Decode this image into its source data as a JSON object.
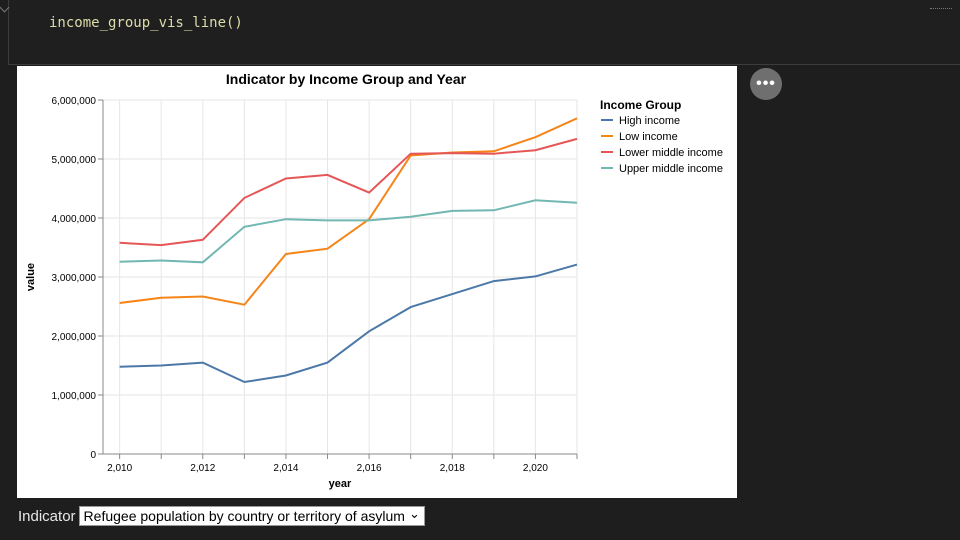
{
  "notebook": {
    "code": "income_group_vis_line()"
  },
  "more_button": {
    "icon": "more-horizontal-icon",
    "label": "•••"
  },
  "indicator": {
    "label": "Indicator",
    "selected": "Refugee population by country or territory of asylum",
    "chevron": "⌄"
  },
  "chart_data": {
    "type": "line",
    "title": "Indicator by Income Group and Year",
    "xlabel": "year",
    "ylabel": "value",
    "xlim": [
      2009.6,
      2021.0
    ],
    "ylim": [
      0,
      6000000
    ],
    "x_ticks": [
      2010,
      2012,
      2014,
      2016,
      2018,
      2020
    ],
    "x_tick_labels": [
      "2,010",
      "2,012",
      "2,014",
      "2,016",
      "2,018",
      "2,020"
    ],
    "y_ticks": [
      0,
      1000000,
      2000000,
      3000000,
      4000000,
      5000000,
      6000000
    ],
    "y_tick_labels": [
      "0",
      "1,000,000",
      "2,000,000",
      "3,000,000",
      "4,000,000",
      "5,000,000",
      "6,000,000"
    ],
    "grid": true,
    "legend": {
      "title": "Income Group",
      "placement": "right"
    },
    "x": [
      2010,
      2011,
      2012,
      2013,
      2014,
      2015,
      2016,
      2017,
      2018,
      2019,
      2020,
      2021
    ],
    "series": [
      {
        "name": "High income",
        "color": "#4c78a8",
        "values": [
          1480000,
          1500000,
          1550000,
          1220000,
          1330000,
          1550000,
          2080000,
          2490000,
          2710000,
          2930000,
          3010000,
          3210000
        ]
      },
      {
        "name": "Low income",
        "color": "#f58518",
        "values": [
          2560000,
          2650000,
          2670000,
          2530000,
          3390000,
          3480000,
          3980000,
          5060000,
          5110000,
          5130000,
          5370000,
          5690000
        ]
      },
      {
        "name": "Lower middle income",
        "color": "#e45756",
        "values": [
          3580000,
          3540000,
          3630000,
          4340000,
          4670000,
          4730000,
          4430000,
          5090000,
          5100000,
          5090000,
          5150000,
          5340000
        ]
      },
      {
        "name": "Upper middle income",
        "color": "#72b7b2",
        "values": [
          3260000,
          3280000,
          3250000,
          3850000,
          3980000,
          3960000,
          3960000,
          4020000,
          4120000,
          4130000,
          4300000,
          4260000
        ]
      }
    ]
  }
}
